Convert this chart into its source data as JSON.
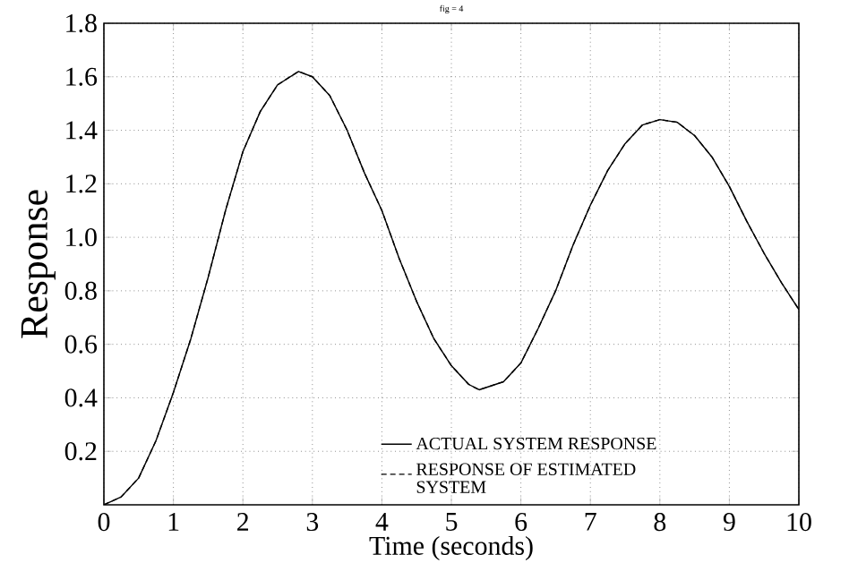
{
  "chart_data": {
    "type": "line",
    "title": "fig = 4",
    "xlabel": "Time (seconds)",
    "ylabel": "Response",
    "x": [
      0,
      0.25,
      0.5,
      0.75,
      1,
      1.25,
      1.5,
      1.75,
      2,
      2.25,
      2.5,
      2.8,
      3,
      3.25,
      3.5,
      3.75,
      4,
      4.25,
      4.5,
      4.75,
      5,
      5.25,
      5.4,
      5.75,
      6,
      6.25,
      6.5,
      6.75,
      7,
      7.25,
      7.5,
      7.75,
      8,
      8.25,
      8.5,
      8.75,
      9,
      9.25,
      9.5,
      9.75,
      10
    ],
    "series": [
      {
        "name": "ACTUAL SYSTEM RESPONSE",
        "color": "#000000",
        "line_style": "solid",
        "values": [
          0,
          0.03,
          0.1,
          0.24,
          0.42,
          0.62,
          0.85,
          1.1,
          1.32,
          1.47,
          1.57,
          1.62,
          1.6,
          1.53,
          1.4,
          1.24,
          1.1,
          0.92,
          0.76,
          0.62,
          0.52,
          0.45,
          0.43,
          0.46,
          0.53,
          0.66,
          0.8,
          0.97,
          1.12,
          1.25,
          1.35,
          1.42,
          1.44,
          1.43,
          1.38,
          1.3,
          1.19,
          1.06,
          0.94,
          0.83,
          0.73
        ]
      },
      {
        "name": "RESPONSE OF ESTIMATED SYSTEM",
        "color": "#000000",
        "line_style": "dashed",
        "values": [
          0,
          0.03,
          0.1,
          0.24,
          0.42,
          0.62,
          0.85,
          1.1,
          1.32,
          1.47,
          1.57,
          1.62,
          1.6,
          1.53,
          1.4,
          1.24,
          1.1,
          0.92,
          0.76,
          0.62,
          0.52,
          0.45,
          0.43,
          0.46,
          0.53,
          0.66,
          0.8,
          0.97,
          1.12,
          1.25,
          1.35,
          1.42,
          1.44,
          1.43,
          1.38,
          1.3,
          1.19,
          1.06,
          0.94,
          0.83,
          0.73
        ]
      }
    ],
    "xlim": [
      0,
      10
    ],
    "xticks": [
      0,
      1,
      2,
      3,
      4,
      5,
      6,
      7,
      8,
      9,
      10
    ],
    "ylim": [
      0,
      1.8
    ],
    "yticks": [
      0.2,
      0.4,
      0.6,
      0.8,
      {
        "value": 1,
        "label": "1.0"
      },
      1.2,
      1.4,
      1.6,
      1.8
    ],
    "grid": true,
    "legend": "bottom",
    "marker": "none"
  }
}
